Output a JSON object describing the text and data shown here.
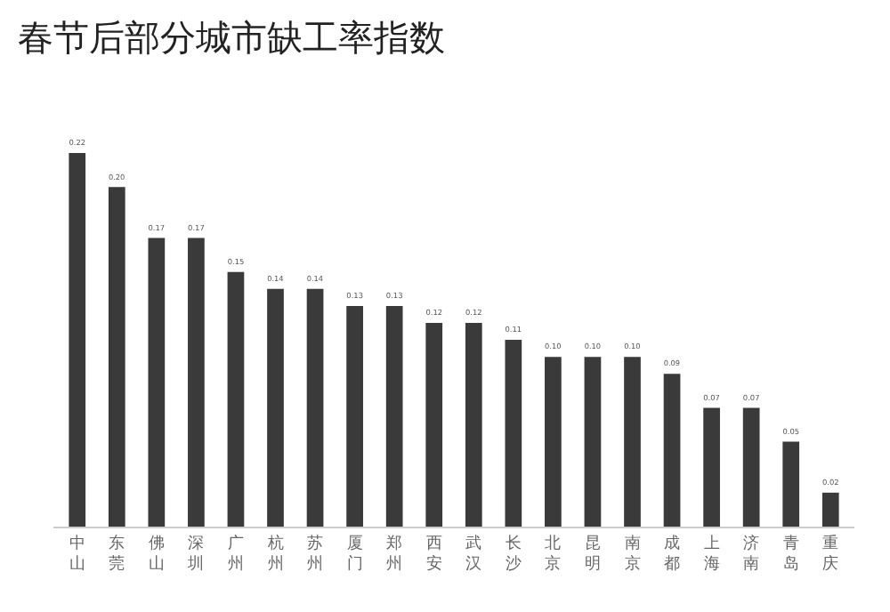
{
  "chart_data": {
    "type": "bar",
    "title": "春节后部分城市缺工率指数",
    "categories": [
      "中山",
      "东莞",
      "佛山",
      "深圳",
      "广州",
      "杭州",
      "苏州",
      "厦门",
      "郑州",
      "西安",
      "武汉",
      "长沙",
      "北京",
      "昆明",
      "南京",
      "成都",
      "上海",
      "济南",
      "青岛",
      "重庆"
    ],
    "values": [
      0.22,
      0.2,
      0.17,
      0.17,
      0.15,
      0.14,
      0.14,
      0.13,
      0.13,
      0.12,
      0.12,
      0.11,
      0.1,
      0.1,
      0.1,
      0.09,
      0.07,
      0.07,
      0.05,
      0.02
    ],
    "value_labels": [
      "0.22",
      "0.20",
      "0.17",
      "0.17",
      "0.15",
      "0.14",
      "0.14",
      "0.13",
      "0.13",
      "0.12",
      "0.12",
      "0.11",
      "0.10",
      "0.10",
      "0.10",
      "0.09",
      "0.07",
      "0.07",
      "0.05",
      "0.02"
    ],
    "color": "#3a3a3a",
    "grid": false,
    "legend": false
  }
}
